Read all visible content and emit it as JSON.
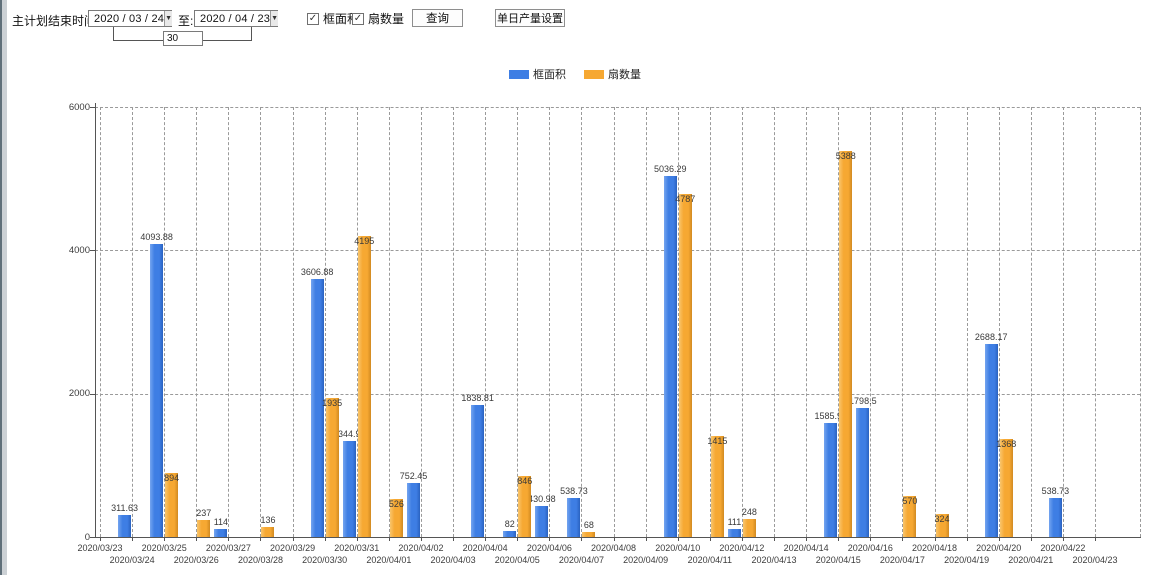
{
  "toolbar": {
    "plan_end_label": "主计划结束时间:",
    "date_from": "2020 / 03 / 24",
    "to_label": "至:",
    "date_to": "2020 / 04 / 23",
    "interval_days": "30",
    "checkboxes": [
      {
        "label": "框面积",
        "checked": true
      },
      {
        "label": "扇数量",
        "checked": true
      }
    ],
    "query_button": "查询",
    "daily_production_button": "单日产量设置",
    "check_glyph": "✓",
    "dropdown_glyph": "▼"
  },
  "legend": [
    {
      "label": "框面积",
      "color": "#3e7ee4"
    },
    {
      "label": "扇数量",
      "color": "#f6a832"
    }
  ],
  "chart_data": {
    "type": "bar",
    "title": "",
    "xlabel": "",
    "ylabel": "",
    "ylim": [
      0,
      6000
    ],
    "yticks": [
      0,
      2000,
      4000,
      6000
    ],
    "grid": "dashed",
    "legend_position": "top-center",
    "categories": [
      "2020/03/23",
      "2020/03/24",
      "2020/03/25",
      "2020/03/26",
      "2020/03/27",
      "2020/03/28",
      "2020/03/29",
      "2020/03/30",
      "2020/03/31",
      "2020/04/01",
      "2020/04/02",
      "2020/04/03",
      "2020/04/04",
      "2020/04/05",
      "2020/04/06",
      "2020/04/07",
      "2020/04/08",
      "2020/04/09",
      "2020/04/10",
      "2020/04/11",
      "2020/04/12",
      "2020/04/13",
      "2020/04/14",
      "2020/04/15",
      "2020/04/16",
      "2020/04/17",
      "2020/04/18",
      "2020/04/19",
      "2020/04/20",
      "2020/04/21",
      "2020/04/22",
      "2020/04/23"
    ],
    "series": [
      {
        "name": "框面积",
        "color": "#3e7ee4",
        "color_light": "#74a4ef",
        "color_dark": "#2a62c0",
        "values": [
          null,
          311.63,
          4093.88,
          null,
          114,
          null,
          null,
          3606.88,
          1344.95,
          null,
          752.45,
          null,
          1838.81,
          82,
          430.98,
          538.73,
          null,
          null,
          5036.29,
          null,
          111,
          null,
          null,
          1585.96,
          1798.5,
          null,
          null,
          null,
          2688.17,
          null,
          538.73,
          null
        ]
      },
      {
        "name": "扇数量",
        "color": "#f6a832",
        "color_light": "#f9c56d",
        "color_dark": "#d18a21",
        "values": [
          null,
          null,
          894,
          237,
          null,
          136,
          null,
          1935,
          4195,
          526,
          null,
          null,
          null,
          846,
          null,
          68,
          null,
          null,
          4787,
          1415,
          248,
          null,
          null,
          5388,
          null,
          570,
          324,
          null,
          1368,
          null,
          null,
          null
        ]
      }
    ]
  },
  "colors": {
    "grid": "#9a9a9a",
    "axis": "#555555",
    "value_label": "#3a3a3a",
    "tick_label": "#3c3c3c"
  }
}
